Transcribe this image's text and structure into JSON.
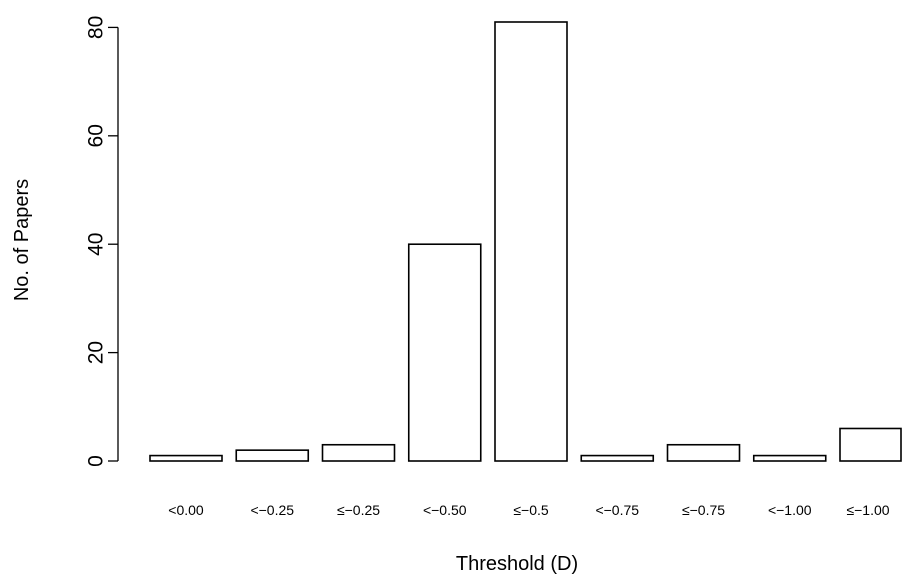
{
  "chart_data": {
    "type": "bar",
    "title": "",
    "xlabel": "Threshold (D)",
    "ylabel": "No. of Papers",
    "categories": [
      "<0.00",
      "<−0.25",
      "≤−0.25",
      "<−0.50",
      "≤−0.5",
      "<−0.75",
      "≤−0.75",
      "<−1.00",
      "≤−1.00"
    ],
    "values": [
      1,
      2,
      3,
      40,
      81,
      1,
      3,
      1,
      6
    ],
    "yticks": [
      0,
      20,
      40,
      60,
      80
    ],
    "ylim": [
      0,
      81
    ],
    "grid": false,
    "legend": "none",
    "bar_fill": "#ffffff",
    "bar_stroke": "#000000"
  }
}
